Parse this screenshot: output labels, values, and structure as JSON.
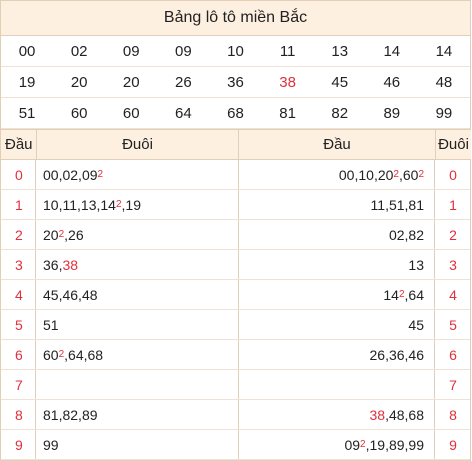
{
  "title": "Bảng lô tô miền Bắc",
  "numbers": [
    "00",
    "02",
    "09",
    "09",
    "10",
    "11",
    "13",
    "14",
    "14",
    "19",
    "20",
    "20",
    "26",
    "36",
    "38",
    "45",
    "46",
    "48",
    "51",
    "60",
    "60",
    "64",
    "68",
    "81",
    "82",
    "89",
    "99"
  ],
  "highlight_number_index": 14,
  "headers": {
    "dau_left": "Đầu",
    "duoi_left": "Đuôi",
    "dau_right": "Đầu",
    "duoi_right": "Đuôi"
  },
  "rows": [
    {
      "head": "0",
      "left": "00, 02, 09²",
      "right": "00, 10, 20², 60²"
    },
    {
      "head": "1",
      "left": "10, 11, 13, 14², 19",
      "right": "11, 51, 81"
    },
    {
      "head": "2",
      "left": "20², 26",
      "right": "02, 82"
    },
    {
      "head": "3",
      "left": "36, 38",
      "right": "13"
    },
    {
      "head": "4",
      "left": "45, 46, 48",
      "right": "14², 64"
    },
    {
      "head": "5",
      "left": "51",
      "right": "45"
    },
    {
      "head": "6",
      "left": "60², 64, 68",
      "right": "26, 36, 46"
    },
    {
      "head": "7",
      "left": "",
      "right": ""
    },
    {
      "head": "8",
      "left": "81, 82, 89",
      "right": "38, 48, 68"
    },
    {
      "head": "9",
      "left": "99",
      "right": "09², 19, 89, 99"
    }
  ],
  "colors": {
    "accent": "#e0303b",
    "header_bg": "#fdf0e1",
    "border": "#e2cfb8"
  }
}
